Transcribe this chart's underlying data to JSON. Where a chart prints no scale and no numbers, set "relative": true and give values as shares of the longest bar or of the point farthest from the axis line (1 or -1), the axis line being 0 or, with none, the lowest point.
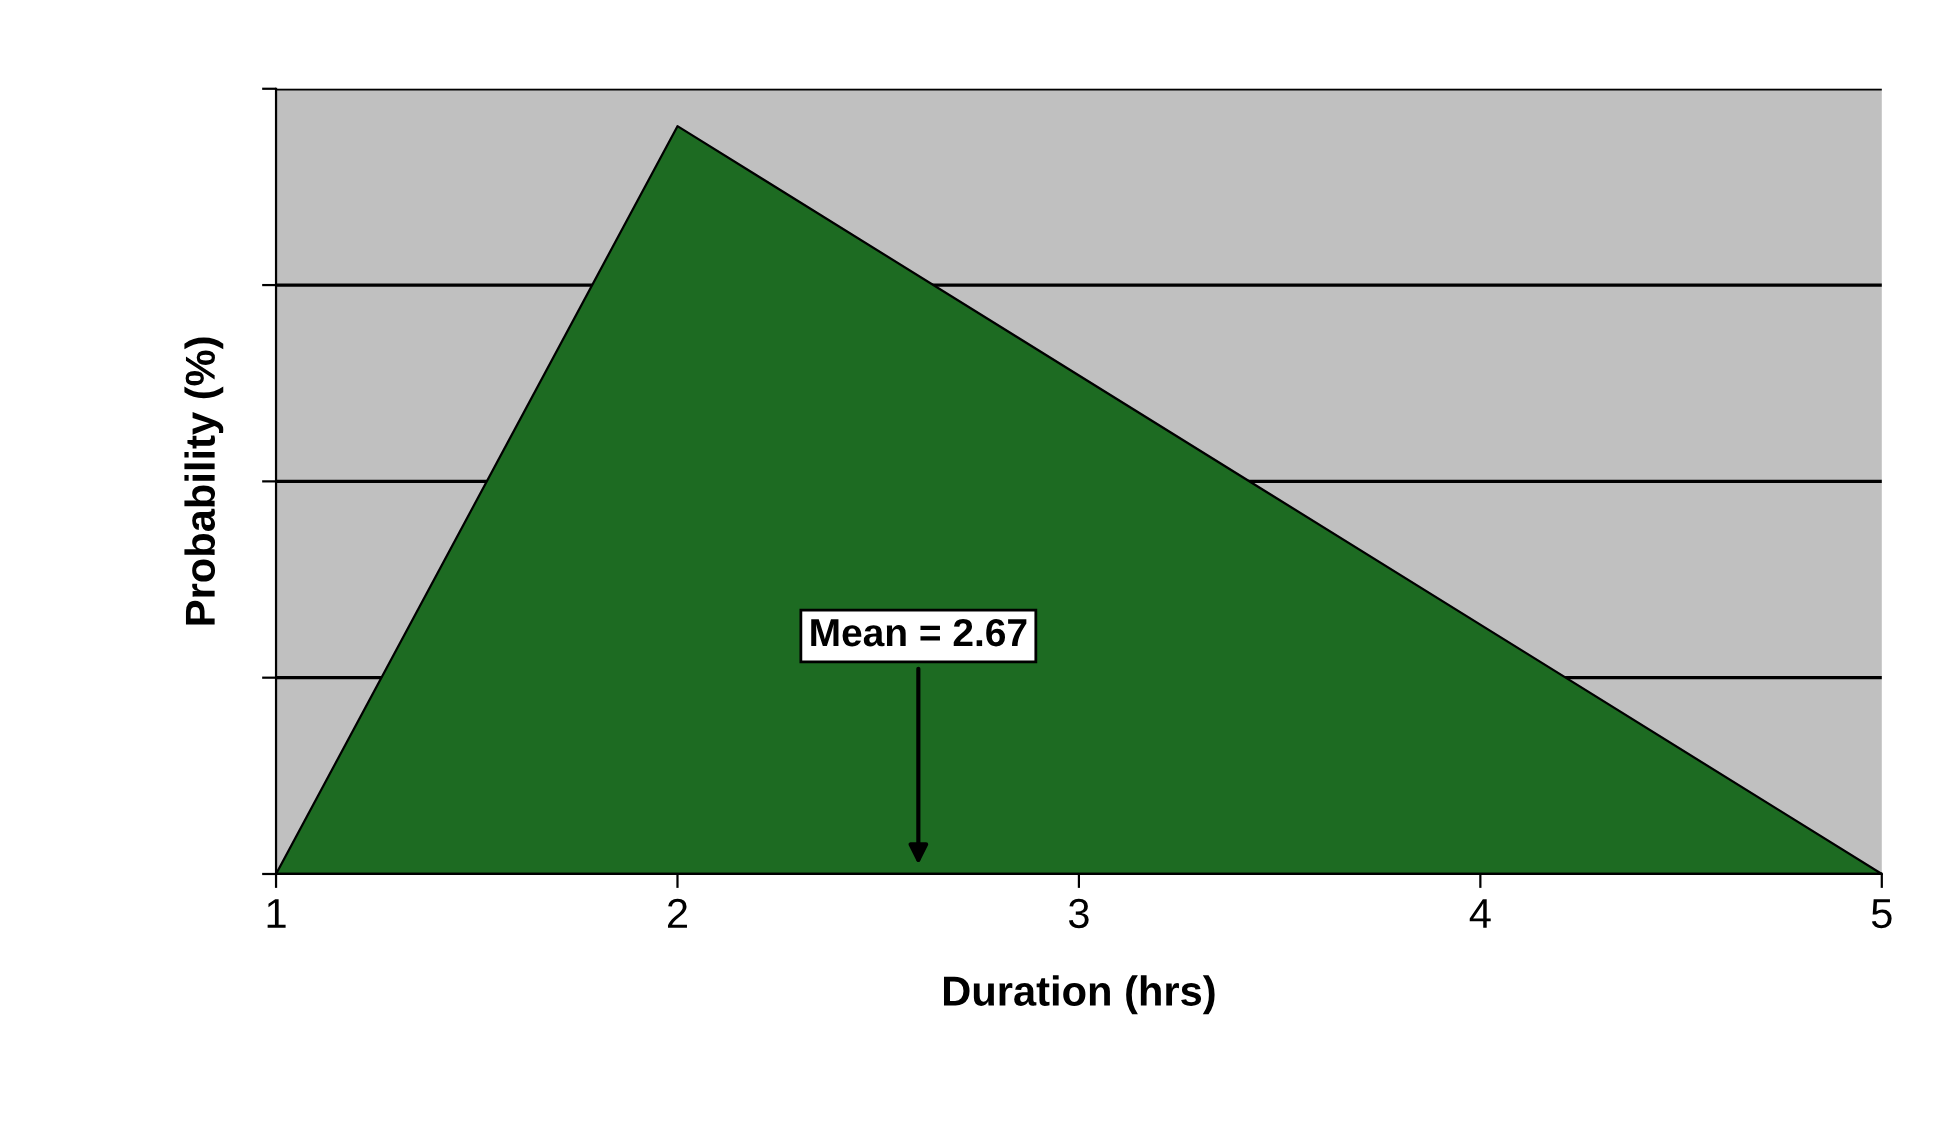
{
  "chart_data": {
    "type": "area",
    "xlabel": "Duration (hrs)",
    "ylabel": "Probability (%)",
    "x": [
      1,
      2,
      5
    ],
    "series": [
      {
        "color": "#1d6b22",
        "values": [
          0,
          1,
          0
        ]
      }
    ],
    "relative": true,
    "xlim": [
      1,
      5
    ],
    "xticks": [
      1,
      2,
      3,
      4,
      5
    ],
    "tick_labels": "x",
    "grid": "y",
    "legend": false,
    "annotations": [
      "Mean = 2.67"
    ]
  }
}
